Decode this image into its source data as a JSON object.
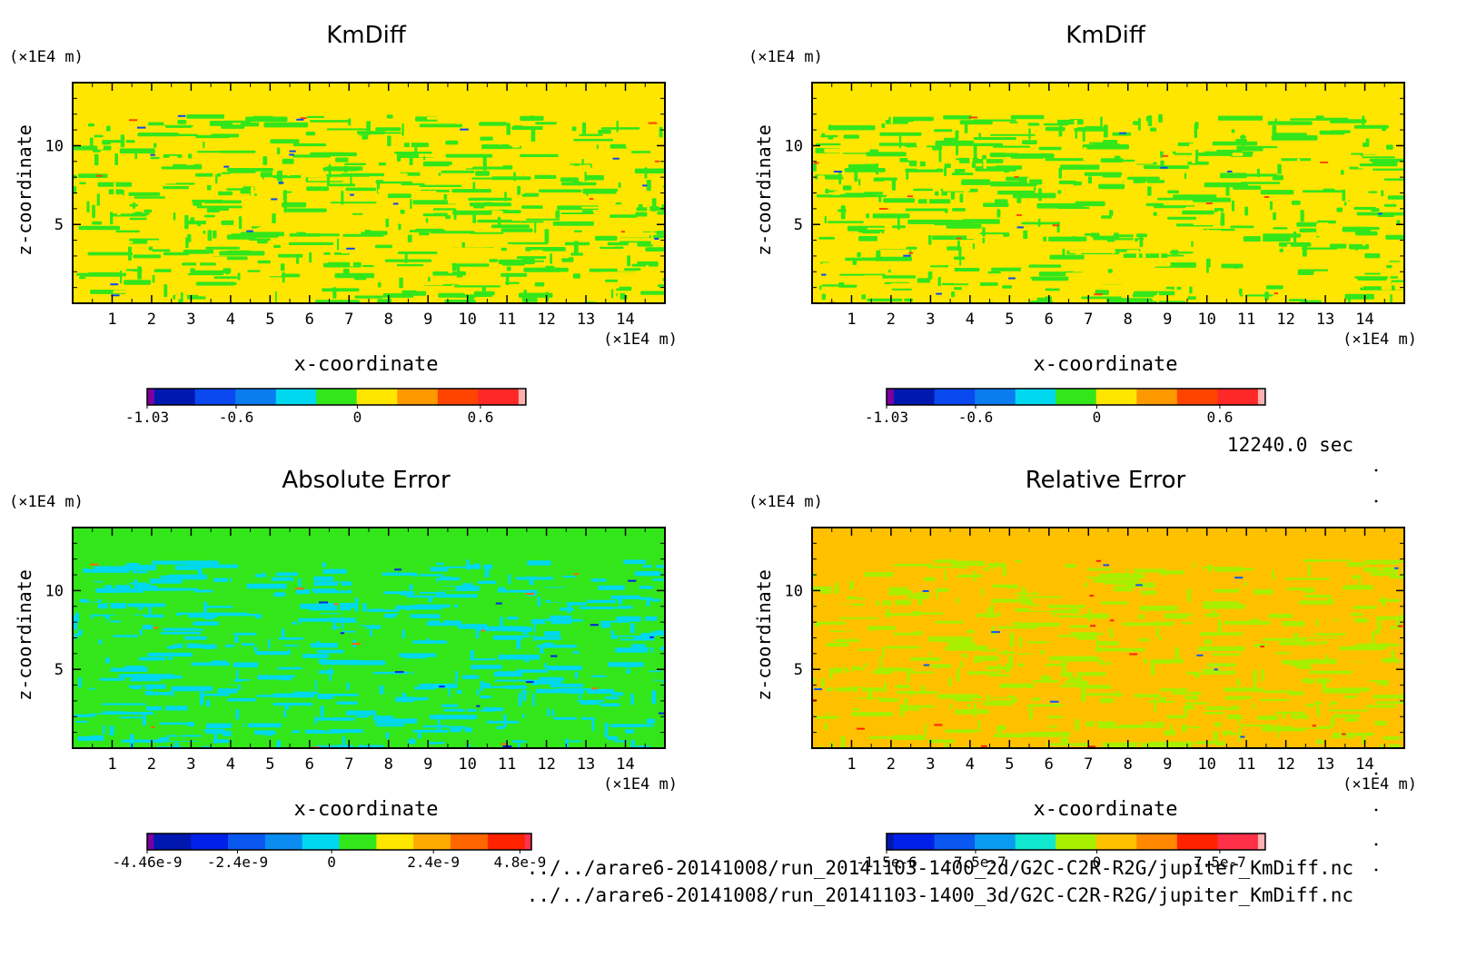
{
  "page": {
    "time_label": "12240.0 sec",
    "footer": [
      "../../arare6-20141008/run_20141103-1400_2d/G2C-C2R-R2G/jupiter_KmDiff.nc",
      "../../arare6-20141008/run_20141103-1400_3d/G2C-C2R-R2G/jupiter_KmDiff.nc"
    ]
  },
  "chart_data": [
    {
      "type": "heatmap",
      "title": "KmDiff",
      "xlabel": "x-coordinate",
      "ylabel": "z-coordinate",
      "x_unit": "(×1E4 m)",
      "y_unit": "(×1E4 m)",
      "xlim": [
        0,
        15
      ],
      "ylim": [
        0,
        14
      ],
      "x_ticks": [
        1,
        2,
        3,
        4,
        5,
        6,
        7,
        8,
        9,
        10,
        11,
        12,
        13,
        14
      ],
      "y_ticks": [
        5,
        10
      ],
      "top_band_from": 12,
      "background": "#ffe600",
      "pattern_color": "#33e61a",
      "colorbar": {
        "colors": [
          "#7a00a0",
          "#0018b0",
          "#0a48f0",
          "#0a7cf0",
          "#00d8f0",
          "#33e61a",
          "#ffe600",
          "#ff9900",
          "#ff4400",
          "#ff2828",
          "#ffb0b0"
        ],
        "tick_labels": [
          "-1.03",
          "-0.6",
          "0",
          "0.6"
        ]
      }
    },
    {
      "type": "heatmap",
      "title": "KmDiff",
      "xlabel": "x-coordinate",
      "ylabel": "z-coordinate",
      "x_unit": "(×1E4 m)",
      "y_unit": "(×1E4 m)",
      "xlim": [
        0,
        15
      ],
      "ylim": [
        0,
        14
      ],
      "x_ticks": [
        1,
        2,
        3,
        4,
        5,
        6,
        7,
        8,
        9,
        10,
        11,
        12,
        13,
        14
      ],
      "y_ticks": [
        5,
        10
      ],
      "top_band_from": 12,
      "background": "#ffe600",
      "pattern_color": "#33e61a",
      "colorbar": {
        "colors": [
          "#7a00a0",
          "#0018b0",
          "#0a48f0",
          "#0a7cf0",
          "#00d8f0",
          "#33e61a",
          "#ffe600",
          "#ff9900",
          "#ff4400",
          "#ff2828",
          "#ffb0b0"
        ],
        "tick_labels": [
          "-1.03",
          "-0.6",
          "0",
          "0.6"
        ]
      }
    },
    {
      "type": "heatmap",
      "title": "Absolute Error",
      "xlabel": "x-coordinate",
      "ylabel": "z-coordinate",
      "x_unit": "(×1E4 m)",
      "y_unit": "(×1E4 m)",
      "xlim": [
        0,
        15
      ],
      "ylim": [
        0,
        14
      ],
      "x_ticks": [
        1,
        2,
        3,
        4,
        5,
        6,
        7,
        8,
        9,
        10,
        11,
        12,
        13,
        14
      ],
      "y_ticks": [
        5,
        10
      ],
      "top_band_from": 12,
      "background": "#33e61a",
      "pattern_color": "#00d8f0",
      "colorbar": {
        "colors": [
          "#7a00a0",
          "#0018b0",
          "#0022e8",
          "#0a58f0",
          "#0a8cf0",
          "#00d8f0",
          "#33e61a",
          "#ffe600",
          "#ffaa00",
          "#ff6600",
          "#ff2200",
          "#ff3050"
        ],
        "tick_labels": [
          "-4.46e-9",
          "-2.4e-9",
          "0",
          "2.4e-9",
          "4.8e-9"
        ]
      }
    },
    {
      "type": "heatmap",
      "title": "Relative Error",
      "xlabel": "x-coordinate",
      "ylabel": "z-coordinate",
      "x_unit": "(×1E4 m)",
      "y_unit": "(×1E4 m)",
      "xlim": [
        0,
        15
      ],
      "ylim": [
        0,
        14
      ],
      "x_ticks": [
        1,
        2,
        3,
        4,
        5,
        6,
        7,
        8,
        9,
        10,
        11,
        12,
        13,
        14
      ],
      "y_ticks": [
        5,
        10
      ],
      "top_band_from": 12,
      "background": "#ffc000",
      "pattern_color": "#a8f000",
      "colorbar": {
        "colors": [
          "#0018b0",
          "#0022e8",
          "#0a58f0",
          "#0a9cf0",
          "#10e8d0",
          "#a8f000",
          "#ffc000",
          "#ff8800",
          "#ff2200",
          "#ff3048",
          "#ffb0b0"
        ],
        "tick_labels": [
          "-1.5e-6",
          "-7.5e-7",
          "0",
          "7.5e-7"
        ]
      }
    }
  ]
}
